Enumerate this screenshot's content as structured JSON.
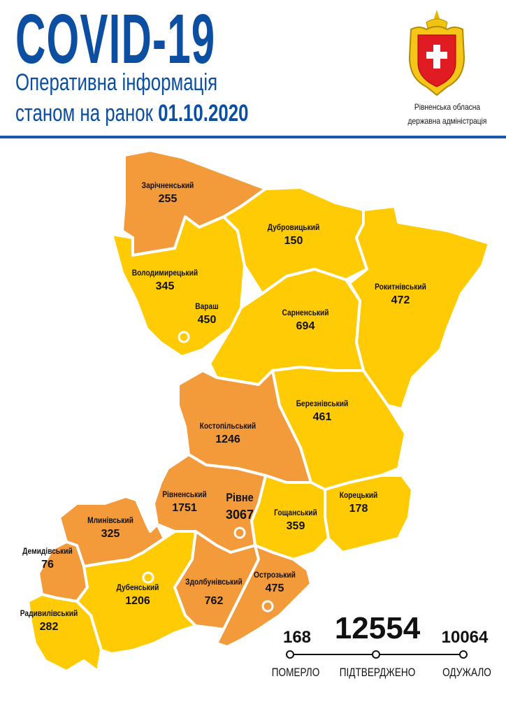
{
  "header": {
    "title": "COVID-19",
    "subtitle_line1": "Оперативна інформація",
    "subtitle_line2_prefix": "станом на ранок",
    "date": "01.10.2020"
  },
  "logo": {
    "caption_line1": "Рівненська обласна",
    "caption_line2": "державна адміністрація"
  },
  "colors": {
    "brand_blue": "#0b4ea2",
    "higher": "#f39a3a",
    "lower": "#ffcb05",
    "border": "#ffffff"
  },
  "regions": [
    {
      "name": "Зарічненський",
      "cases": "255",
      "level": "higher"
    },
    {
      "name": "Володимирецький",
      "cases": "345",
      "level": "lower"
    },
    {
      "name": "Вараш",
      "cases": "450",
      "level": "lower"
    },
    {
      "name": "Дубровицький",
      "cases": "150",
      "level": "lower"
    },
    {
      "name": "Рокитнівський",
      "cases": "472",
      "level": "lower"
    },
    {
      "name": "Сарненський",
      "cases": "694",
      "level": "lower"
    },
    {
      "name": "Костопільський",
      "cases": "1246",
      "level": "higher"
    },
    {
      "name": "Березнівський",
      "cases": "461",
      "level": "lower"
    },
    {
      "name": "Корецький",
      "cases": "178",
      "level": "lower"
    },
    {
      "name": "Гощанський",
      "cases": "359",
      "level": "lower"
    },
    {
      "name": "Рівненський",
      "cases": "1751",
      "level": "higher"
    },
    {
      "name": "Рівне",
      "cases": "3067",
      "level": "higher"
    },
    {
      "name": "Млинівський",
      "cases": "325",
      "level": "higher"
    },
    {
      "name": "Демидівський",
      "cases": "76",
      "level": "higher"
    },
    {
      "name": "Радивилівський",
      "cases": "282",
      "level": "lower"
    },
    {
      "name": "Дубенський",
      "cases": "1206",
      "level": "lower"
    },
    {
      "name": "Здолбунівський",
      "cases": "762",
      "level": "higher"
    },
    {
      "name": "Острозький",
      "cases": "475",
      "level": "higher"
    }
  ],
  "totals": {
    "deaths": "168",
    "deaths_label": "ПОМЕРЛО",
    "confirmed": "12554",
    "confirmed_label": "ПІДТВЕРДЖЕНО",
    "recovered": "10064",
    "recovered_label": "ОДУЖАЛО"
  }
}
